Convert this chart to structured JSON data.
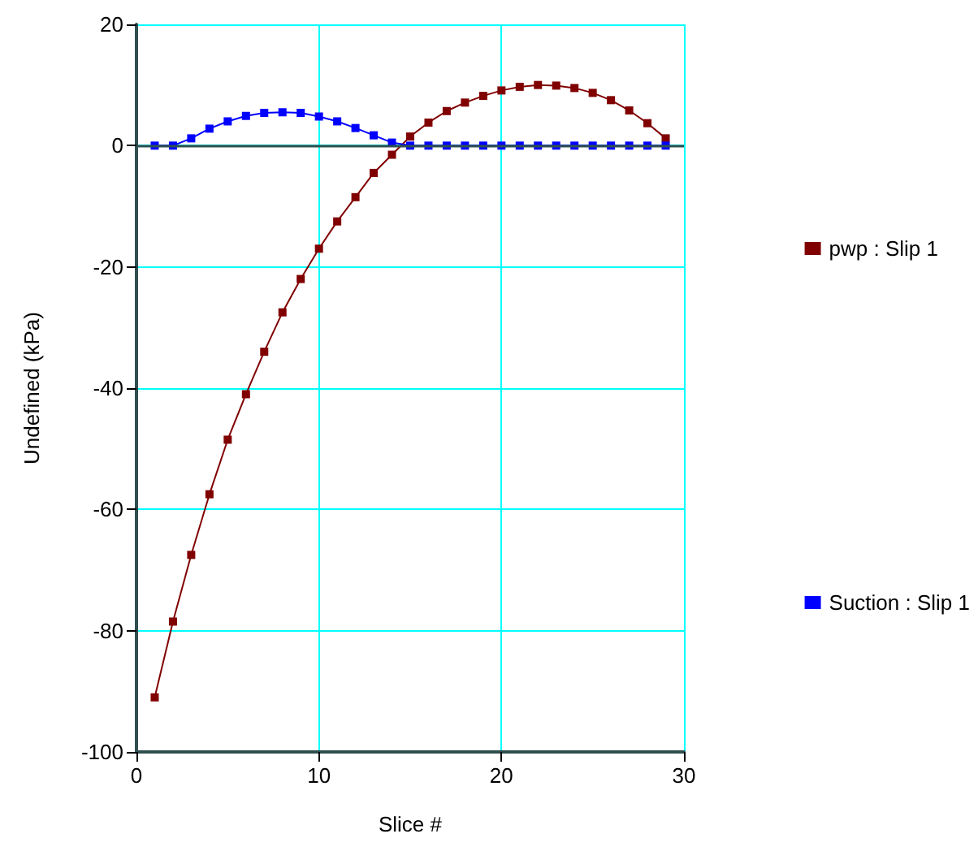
{
  "chart_data": {
    "type": "line",
    "xlabel": "Slice #",
    "ylabel": "Undefined (kPa)",
    "x": [
      1,
      2,
      3,
      4,
      5,
      6,
      7,
      8,
      9,
      10,
      11,
      12,
      13,
      14,
      15,
      16,
      17,
      18,
      19,
      20,
      21,
      22,
      23,
      24,
      25,
      26,
      27,
      28,
      29
    ],
    "series": [
      {
        "name": "pwp : Slip 1",
        "color": "#800000",
        "marker": "square",
        "values": [
          -91,
          -78.5,
          -67.5,
          -57.5,
          -48.5,
          -41,
          -34,
          -27.5,
          -22,
          -17,
          -12.5,
          -8.5,
          -4.5,
          -1.5,
          1.5,
          3.8,
          5.7,
          7.1,
          8.2,
          9.1,
          9.7,
          10,
          9.9,
          9.5,
          8.7,
          7.5,
          5.8,
          3.7,
          1.2
        ]
      },
      {
        "name": "Suction : Slip 1",
        "color": "#0000ff",
        "marker": "square",
        "values": [
          0,
          0,
          1.2,
          2.8,
          4,
          4.9,
          5.4,
          5.5,
          5.4,
          4.8,
          4,
          2.9,
          1.7,
          0.5,
          0,
          0,
          0,
          0,
          0,
          0,
          0,
          0,
          0,
          0,
          0,
          0,
          0,
          0,
          0
        ]
      }
    ],
    "xlim": [
      0,
      30
    ],
    "xticks": [
      0,
      10,
      20,
      30
    ],
    "ylim": [
      -100,
      20
    ],
    "yticks": [
      -100,
      -80,
      -60,
      -40,
      -20,
      0,
      20
    ],
    "grid": true,
    "legend": "right",
    "line_style": "solid",
    "ref_lines": [
      {
        "axis": "y",
        "value": 0,
        "color": "#2f4f4f"
      }
    ]
  }
}
